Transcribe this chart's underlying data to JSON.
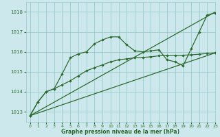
{
  "bg_color": "#cce8ec",
  "grid_color": "#99cccc",
  "line_color": "#2d6a2d",
  "xlabel": "Graphe pression niveau de la mer (hPa)",
  "xlim": [
    -0.5,
    23
  ],
  "ylim": [
    1012.5,
    1018.5
  ],
  "yticks": [
    1013,
    1014,
    1015,
    1016,
    1017,
    1018
  ],
  "xticks": [
    0,
    1,
    2,
    3,
    4,
    5,
    6,
    7,
    8,
    9,
    10,
    11,
    12,
    13,
    14,
    15,
    16,
    17,
    18,
    19,
    20,
    21,
    22,
    23
  ],
  "series1_x": [
    0,
    1,
    2,
    3,
    4,
    5,
    6,
    7,
    8,
    9,
    10,
    11,
    12,
    13,
    14,
    15,
    16,
    17,
    18,
    19,
    20,
    21,
    22,
    23
  ],
  "series1_y": [
    1012.8,
    1013.5,
    1014.0,
    1014.15,
    1014.9,
    1015.7,
    1015.9,
    1016.0,
    1016.4,
    1016.6,
    1016.75,
    1016.75,
    1016.35,
    1016.05,
    1016.0,
    1016.05,
    1016.1,
    1015.6,
    1015.5,
    1015.3,
    1016.15,
    1017.0,
    1017.85,
    1017.95
  ],
  "series2_x": [
    0,
    1,
    2,
    3,
    4,
    5,
    6,
    7,
    8,
    9,
    10,
    11,
    12,
    13,
    14,
    15,
    16,
    17,
    18,
    19,
    20,
    21,
    22,
    23
  ],
  "series2_y": [
    1012.8,
    1013.5,
    1014.0,
    1014.15,
    1014.35,
    1014.55,
    1014.8,
    1015.05,
    1015.2,
    1015.35,
    1015.5,
    1015.6,
    1015.65,
    1015.7,
    1015.72,
    1015.75,
    1015.8,
    1015.82,
    1015.82,
    1015.83,
    1015.85,
    1015.88,
    1015.92,
    1015.95
  ],
  "series3_x": [
    0,
    23
  ],
  "series3_y": [
    1012.8,
    1015.95
  ],
  "series4_x": [
    0,
    23
  ],
  "series4_y": [
    1012.8,
    1018.0
  ]
}
